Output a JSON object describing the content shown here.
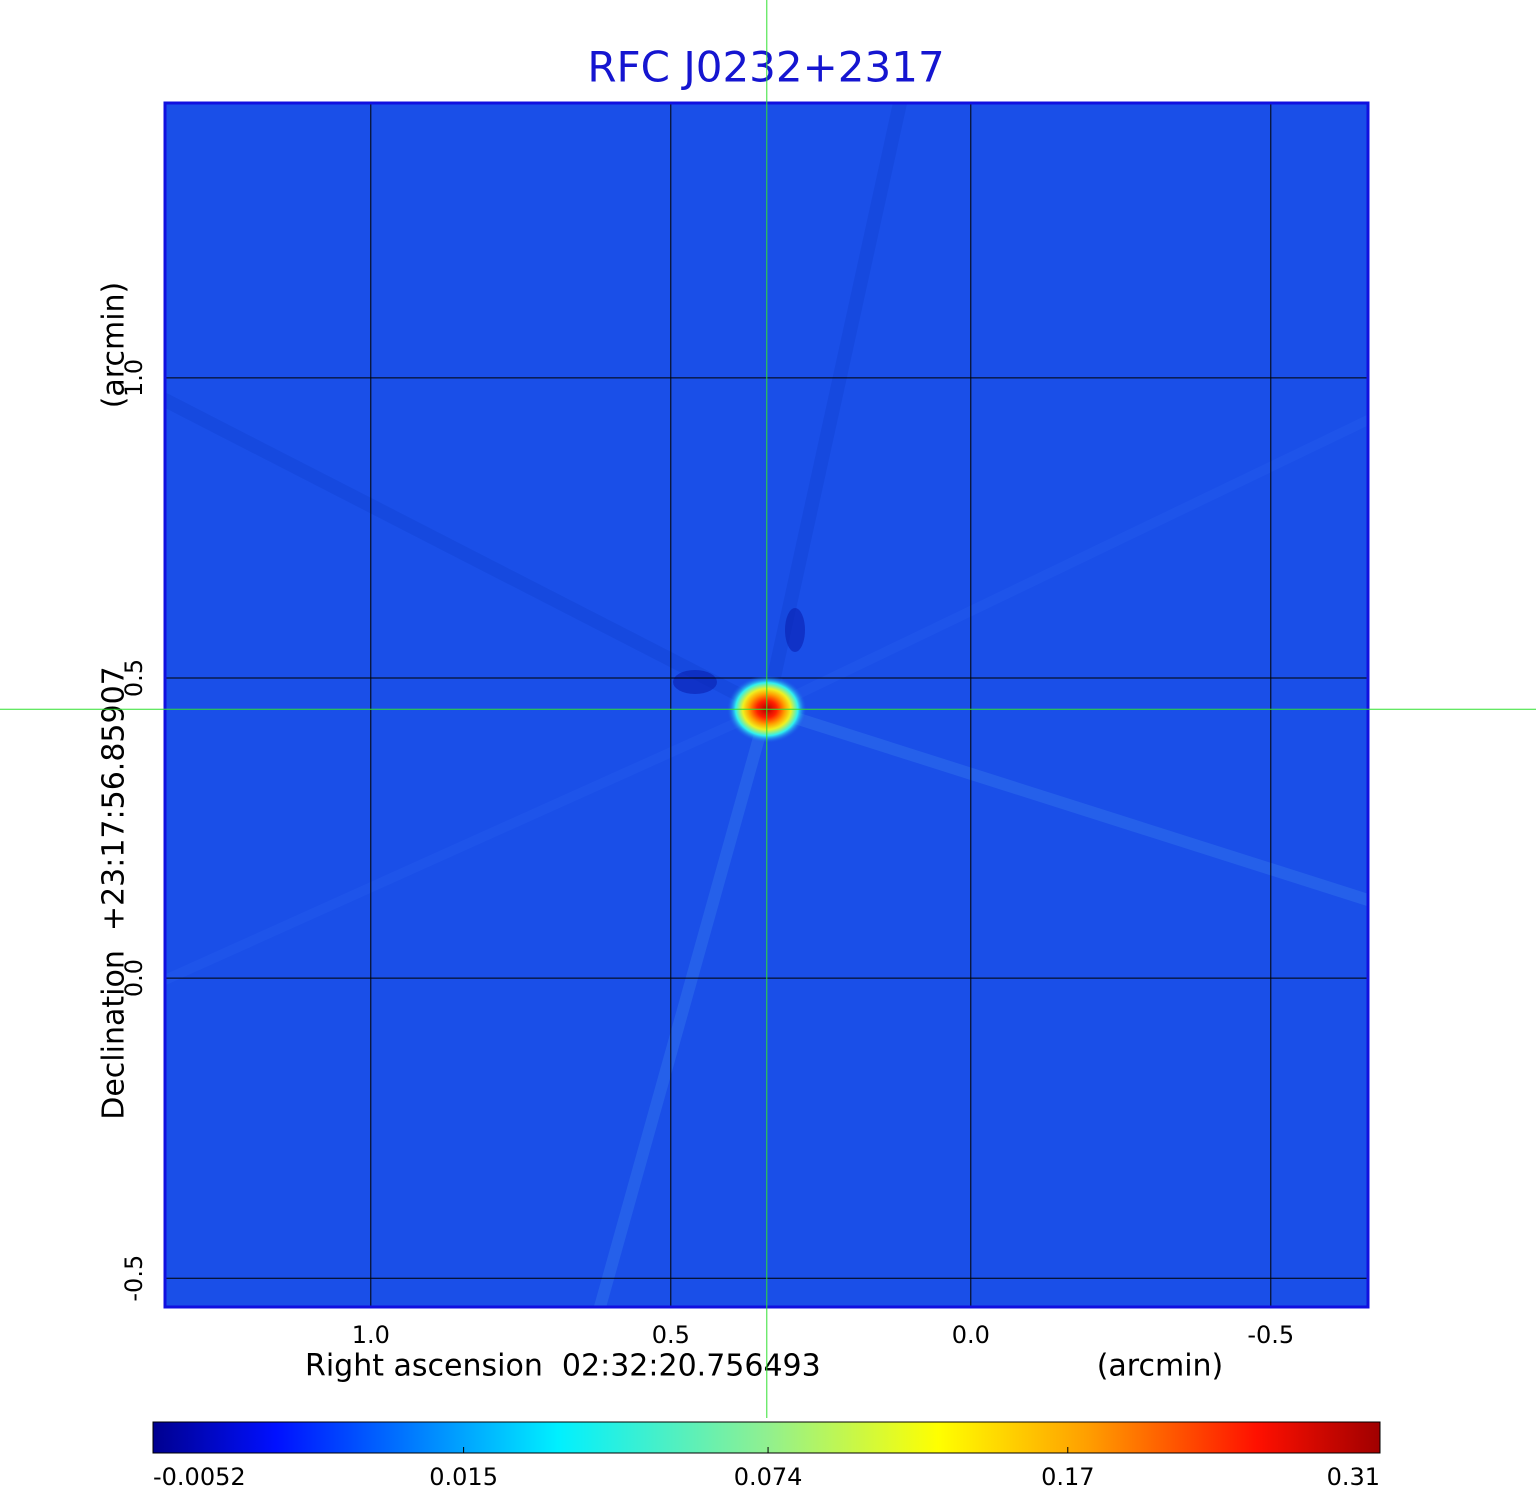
{
  "chart_data": {
    "type": "image",
    "title": "RFC J0232+2317",
    "xlabel": "Right ascension  02:32:20.756493",
    "xunit": "(arcmin)",
    "ylabel": "Declination  +23:17:56.85907",
    "yunit": "(arcmin)",
    "xlim": [
      1.343,
      -0.662
    ],
    "ylim": [
      -0.548,
      1.458
    ],
    "xticks": [
      {
        "value": 1,
        "label": "1.0"
      },
      0.5,
      {
        "value": 0,
        "label": "0.0"
      },
      -0.5
    ],
    "yticks": [
      {
        "value": 1,
        "label": "1.0"
      },
      0.5,
      {
        "value": 0,
        "label": "0.0"
      },
      -0.5
    ],
    "grid": true,
    "crosshair": {
      "x": 0.34,
      "y": 0.448
    },
    "source": {
      "x": 0.34,
      "y": 0.448,
      "peak": 0.31
    },
    "colorbar": {
      "lim": [
        -0.0052,
        0.31
      ],
      "scale": "sqrt",
      "ticks": [
        -0.0052,
        0.015,
        0.074,
        0.17,
        0.31
      ]
    }
  }
}
